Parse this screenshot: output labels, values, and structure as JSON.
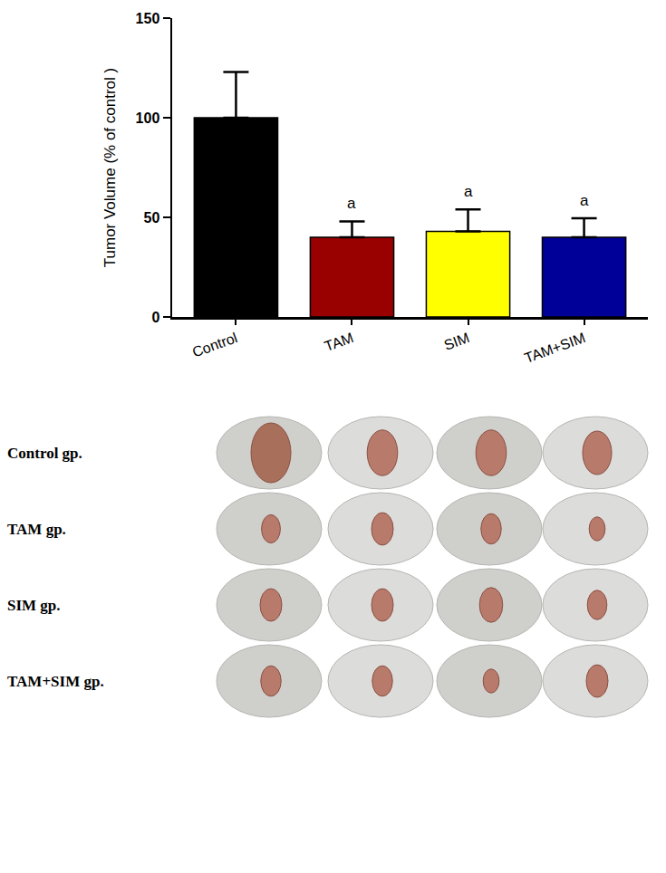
{
  "chart_data": {
    "type": "bar",
    "ylabel": "Tumor Volume (% of control )",
    "categories": [
      "Control",
      "TAM",
      "SIM",
      "TAM+SIM"
    ],
    "values": [
      100,
      40,
      43,
      40
    ],
    "errors": [
      23,
      8,
      11,
      9.5
    ],
    "colors": [
      "#000000",
      "#990000",
      "#ffff00",
      "#000099"
    ],
    "ylim": [
      0,
      150
    ],
    "yticks": [
      0,
      50,
      100,
      150
    ],
    "grid": false,
    "annotations": [
      {
        "category": "TAM",
        "text": "a"
      },
      {
        "category": "SIM",
        "text": "a"
      },
      {
        "category": "TAM+SIM",
        "text": "a"
      }
    ]
  },
  "photo_panel": {
    "rows": [
      "Control gp.",
      "TAM gp.",
      "SIM gp.",
      "TAM+SIM gp."
    ]
  }
}
